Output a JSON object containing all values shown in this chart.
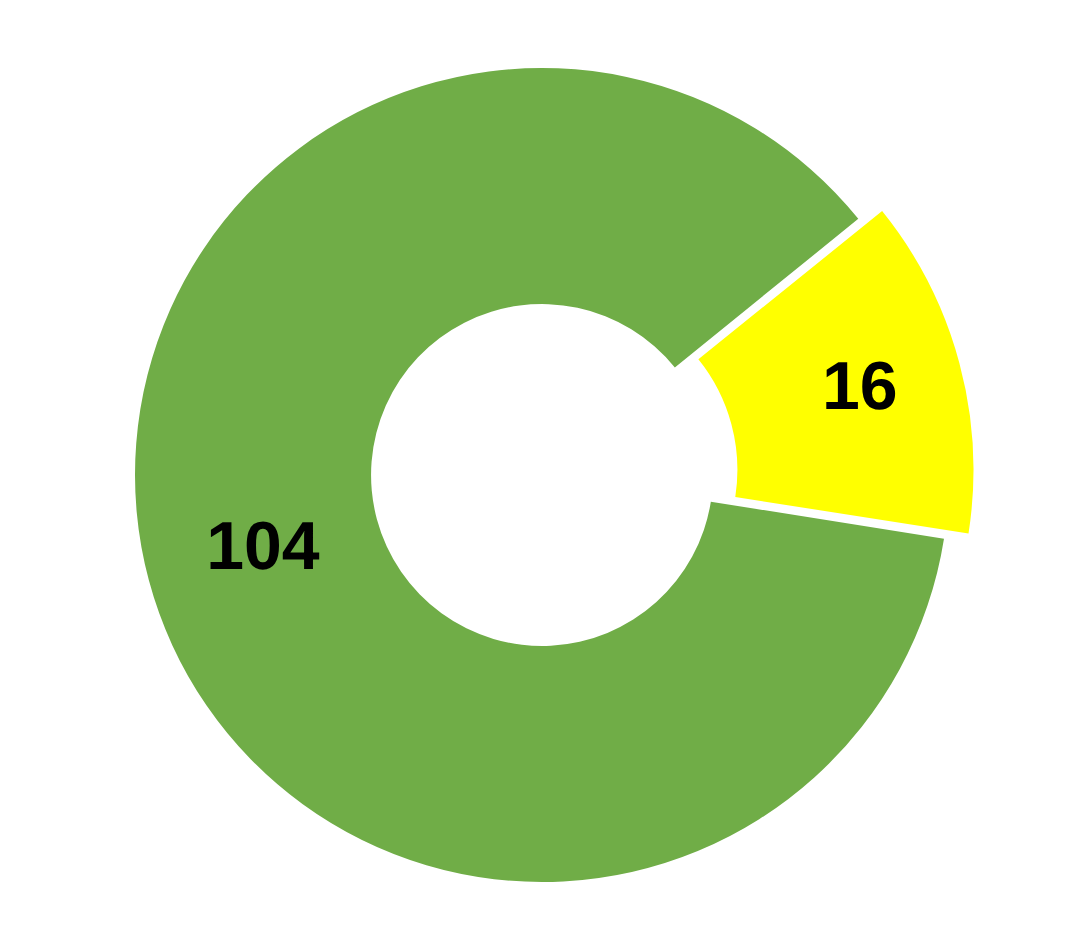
{
  "chart_data": {
    "type": "donut",
    "categories": [
      null,
      null
    ],
    "values": [
      16,
      104
    ],
    "colors": [
      "#ffff00",
      "#70ad47"
    ],
    "data_labels": true,
    "legend": false
  }
}
